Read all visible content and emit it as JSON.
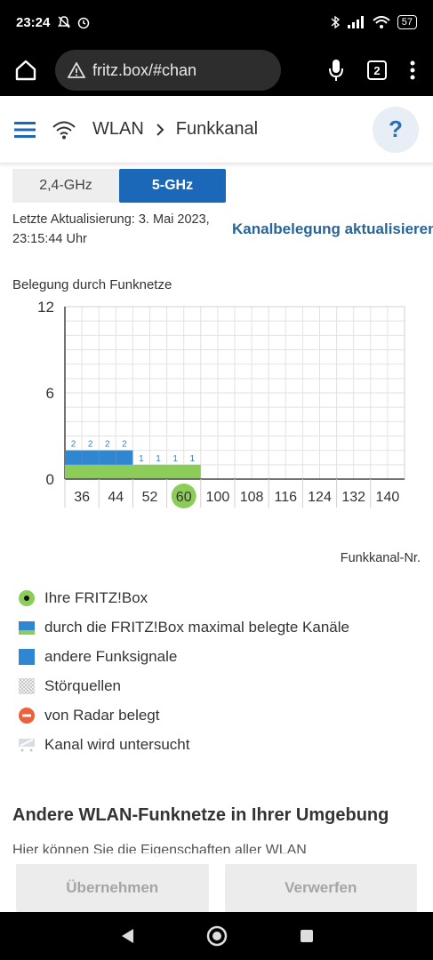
{
  "statusbar": {
    "time": "23:24",
    "battery": "57"
  },
  "browser": {
    "url": "fritz.box/#chan",
    "tab_count": "2"
  },
  "header": {
    "crumb_wlan": "WLAN",
    "crumb_page": "Funkkanal",
    "help": "?"
  },
  "bands": {
    "band1": "2,4-GHz",
    "band2": "5-GHz"
  },
  "update": {
    "line1": "Letzte Aktualisierung: 3. Mai 2023,",
    "line2": "23:15:44 Uhr",
    "refresh_link": "Kanalbelegung aktualisieren"
  },
  "chart_data": {
    "type": "bar",
    "title": "Belegung durch Funknetze",
    "xlabel": "Funkkanal-Nr.",
    "ylabel": "",
    "ylim": [
      0,
      12
    ],
    "yticks": [
      "0",
      "6",
      "12"
    ],
    "categories": [
      "36",
      "44",
      "52",
      "60",
      "100",
      "108",
      "116",
      "124",
      "132",
      "140"
    ],
    "series": [
      {
        "name": "andere Funksignale",
        "color": "#2f86d1",
        "x": [
          36,
          40,
          44,
          48,
          52,
          56,
          60,
          64
        ],
        "values": [
          2,
          2,
          2,
          2,
          1,
          1,
          1,
          1
        ]
      },
      {
        "name": "durch die FRITZ!Box maximal belegte Kanäle",
        "color": "#8ccd5a",
        "x": [
          36,
          64
        ],
        "values": [
          1,
          1
        ]
      }
    ],
    "highlight_channel": "60",
    "grid": true
  },
  "legend": [
    {
      "label": "Ihre FRITZ!Box",
      "icon": "fritzbox-dot-icon"
    },
    {
      "label": "durch die FRITZ!Box maximal belegte Kanäle",
      "icon": "max-channels-icon"
    },
    {
      "label": "andere Funksignale",
      "icon": "other-signals-icon"
    },
    {
      "label": "Störquellen",
      "icon": "interference-icon"
    },
    {
      "label": "von Radar belegt",
      "icon": "radar-icon"
    },
    {
      "label": "Kanal wird untersucht",
      "icon": "channel-checking-icon"
    }
  ],
  "section": {
    "title": "Andere WLAN-Funknetze in Ihrer Umgebung",
    "text": "Hier können Sie die Eigenschaften aller WLAN"
  },
  "footer": {
    "apply": "Übernehmen",
    "discard": "Verwerfen"
  }
}
